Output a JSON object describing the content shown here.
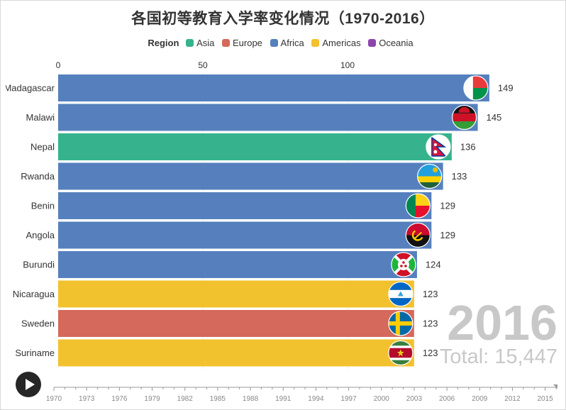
{
  "title": "各国初等教育入学率变化情况（1970-2016）",
  "legend": {
    "title": "Region",
    "items": [
      {
        "label": "Asia",
        "color": "#36b38c"
      },
      {
        "label": "Europe",
        "color": "#d4695c"
      },
      {
        "label": "Africa",
        "color": "#5580bd"
      },
      {
        "label": "Americas",
        "color": "#f2c12e"
      },
      {
        "label": "Oceania",
        "color": "#8e44ad"
      }
    ]
  },
  "current_year": "2016",
  "total_text": "Total: 15,447",
  "chart_data": {
    "type": "bar",
    "orientation": "horizontal",
    "title": "各国初等教育入学率变化情况（1970-2016）",
    "x_axis_ticks": [
      0,
      50,
      100
    ],
    "xlim": [
      0,
      170
    ],
    "bars": [
      {
        "name": "Madagascar",
        "value": 149,
        "region": "Africa",
        "flag": "madagascar-flag"
      },
      {
        "name": "Malawi",
        "value": 145,
        "region": "Africa",
        "flag": "malawi-flag"
      },
      {
        "name": "Nepal",
        "value": 136,
        "region": "Asia",
        "flag": "nepal-flag"
      },
      {
        "name": "Rwanda",
        "value": 133,
        "region": "Africa",
        "flag": "rwanda-flag"
      },
      {
        "name": "Benin",
        "value": 129,
        "region": "Africa",
        "flag": "benin-flag"
      },
      {
        "name": "Angola",
        "value": 129,
        "region": "Africa",
        "flag": "angola-flag"
      },
      {
        "name": "Burundi",
        "value": 124,
        "region": "Africa",
        "flag": "burundi-flag"
      },
      {
        "name": "Nicaragua",
        "value": 123,
        "region": "Americas",
        "flag": "nicaragua-flag"
      },
      {
        "name": "Sweden",
        "value": 123,
        "region": "Europe",
        "flag": "sweden-flag"
      },
      {
        "name": "Suriname",
        "value": 123,
        "region": "Americas",
        "flag": "suriname-flag"
      }
    ],
    "timeline": {
      "ticks": [
        "1970",
        "1973",
        "1976",
        "1979",
        "1982",
        "1985",
        "1988",
        "1991",
        "1994",
        "1997",
        "2000",
        "2003",
        "2006",
        "2009",
        "2012",
        "2015"
      ],
      "range": [
        1970,
        2016
      ],
      "current": 2016
    }
  }
}
